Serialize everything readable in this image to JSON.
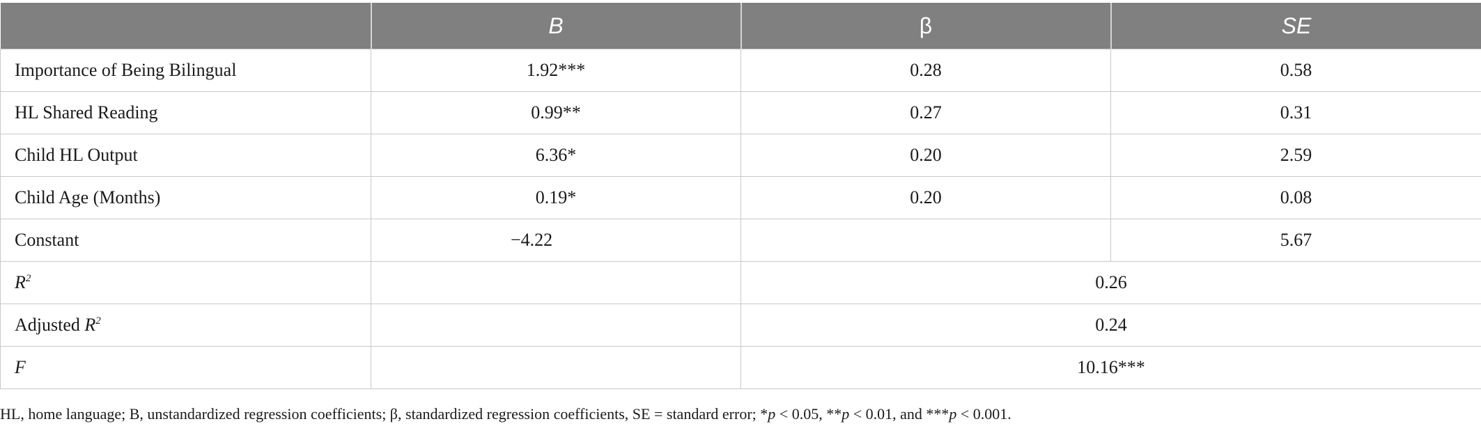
{
  "table": {
    "headers": [
      "",
      "B",
      "β",
      "SE"
    ],
    "rows": [
      {
        "label": "Importance of Being Bilingual",
        "B": "1.92***",
        "beta": "0.28",
        "SE": "0.58"
      },
      {
        "label": "HL Shared Reading",
        "B": "0.99**",
        "beta": "0.27",
        "SE": "0.31"
      },
      {
        "label": "Child HL Output",
        "B": "6.36*",
        "beta": "0.20",
        "SE": "2.59"
      },
      {
        "label": "Child Age (Months)",
        "B": "0.19*",
        "beta": "0.20",
        "SE": "0.08"
      },
      {
        "label": "Constant",
        "B": "−4.22",
        "beta": "",
        "SE": "5.67"
      }
    ],
    "summary": [
      {
        "label_main": "R",
        "label_sup": "2",
        "value": "0.26"
      },
      {
        "label_prefix": "Adjusted ",
        "label_main": "R",
        "label_sup": "2",
        "value": "0.24"
      },
      {
        "label_main": "F",
        "value": "10.16***"
      }
    ]
  },
  "note": {
    "part1": "HL, home language; B, unstandardized regression coefficients; β, standardized regression coefficients, SE = standard error; *",
    "p1": "p",
    "part2": " < 0.05, **",
    "p2": "p",
    "part3": " < 0.01, and ***",
    "p3": "p",
    "part4": " < 0.001."
  }
}
